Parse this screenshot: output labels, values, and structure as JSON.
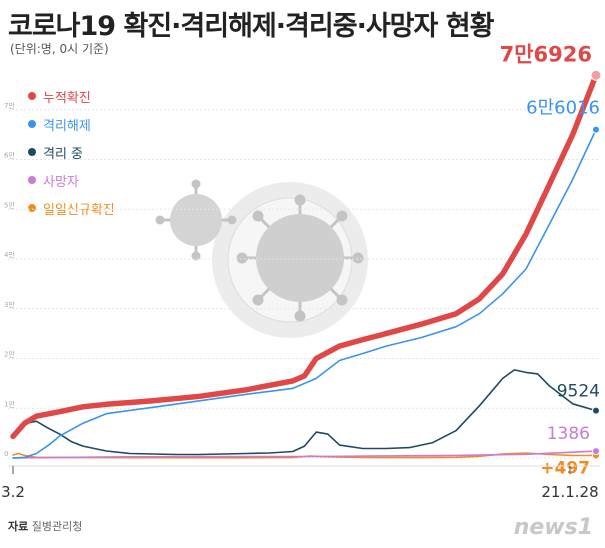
{
  "title": "코로나19 확진·격리해제·격리중·사망자 현황",
  "unit_note": "(단위:명, 0시 기준)",
  "source_label": "자료",
  "source": "질병관리청",
  "logo": "news1",
  "colors": {
    "confirmed": "#e04848",
    "released": "#3a94ee",
    "isolated": "#1e4a64",
    "deaths": "#c97bd6",
    "daily": "#f28c1e"
  },
  "chart_data": {
    "type": "line",
    "x_start_label": "3.2",
    "x_end_label": "21.1.28",
    "ylim": [
      0,
      80000
    ],
    "y_ticks": [
      "0",
      "1만",
      "2만",
      "3만",
      "4만",
      "5만",
      "6만",
      "7만"
    ],
    "x_index_range": [
      0,
      100
    ],
    "series": [
      {
        "key": "confirmed",
        "name": "누적확진",
        "points": [
          [
            0,
            4335
          ],
          [
            2,
            7000
          ],
          [
            4,
            8400
          ],
          [
            8,
            9300
          ],
          [
            12,
            10300
          ],
          [
            16,
            10800
          ],
          [
            24,
            11500
          ],
          [
            32,
            12400
          ],
          [
            40,
            13700
          ],
          [
            48,
            15500
          ],
          [
            50,
            16500
          ],
          [
            52,
            20000
          ],
          [
            56,
            22500
          ],
          [
            60,
            23800
          ],
          [
            64,
            25000
          ],
          [
            70,
            26900
          ],
          [
            76,
            29000
          ],
          [
            80,
            32000
          ],
          [
            84,
            37000
          ],
          [
            88,
            45000
          ],
          [
            92,
            55000
          ],
          [
            96,
            65000
          ],
          [
            100,
            76926
          ]
        ],
        "end_label": "7만6926"
      },
      {
        "key": "released",
        "name": "격리해제",
        "points": [
          [
            0,
            30
          ],
          [
            2,
            120
          ],
          [
            4,
            900
          ],
          [
            6,
            2500
          ],
          [
            8,
            4400
          ],
          [
            12,
            7000
          ],
          [
            16,
            8900
          ],
          [
            24,
            10200
          ],
          [
            32,
            11500
          ],
          [
            40,
            12800
          ],
          [
            48,
            14000
          ],
          [
            52,
            16000
          ],
          [
            56,
            19600
          ],
          [
            60,
            21000
          ],
          [
            64,
            22500
          ],
          [
            70,
            24200
          ],
          [
            76,
            26400
          ],
          [
            80,
            29000
          ],
          [
            84,
            33000
          ],
          [
            88,
            38000
          ],
          [
            92,
            47000
          ],
          [
            96,
            56000
          ],
          [
            100,
            66016
          ]
        ],
        "end_label": "6만6016"
      },
      {
        "key": "isolated",
        "name": "격리 중",
        "points": [
          [
            0,
            4300
          ],
          [
            2,
            6900
          ],
          [
            4,
            7400
          ],
          [
            6,
            6000
          ],
          [
            8,
            4800
          ],
          [
            10,
            3300
          ],
          [
            12,
            2400
          ],
          [
            16,
            1400
          ],
          [
            20,
            900
          ],
          [
            24,
            800
          ],
          [
            28,
            700
          ],
          [
            32,
            700
          ],
          [
            36,
            800
          ],
          [
            40,
            900
          ],
          [
            44,
            1000
          ],
          [
            48,
            1300
          ],
          [
            50,
            2400
          ],
          [
            52,
            5200
          ],
          [
            54,
            4800
          ],
          [
            56,
            2600
          ],
          [
            60,
            1900
          ],
          [
            64,
            1900
          ],
          [
            68,
            2100
          ],
          [
            72,
            3100
          ],
          [
            76,
            5500
          ],
          [
            80,
            10500
          ],
          [
            84,
            16000
          ],
          [
            86,
            17700
          ],
          [
            88,
            17200
          ],
          [
            90,
            16900
          ],
          [
            92,
            14500
          ],
          [
            96,
            10900
          ],
          [
            100,
            9524
          ]
        ],
        "end_label": "9524"
      },
      {
        "key": "deaths",
        "name": "사망자",
        "points": [
          [
            0,
            28
          ],
          [
            20,
            250
          ],
          [
            40,
            290
          ],
          [
            52,
            310
          ],
          [
            64,
            420
          ],
          [
            76,
            520
          ],
          [
            88,
            750
          ],
          [
            100,
            1386
          ]
        ],
        "end_label": "1386"
      },
      {
        "key": "daily",
        "name": "일일신규확진",
        "points": [
          [
            0,
            600
          ],
          [
            1,
            900
          ],
          [
            2,
            500
          ],
          [
            4,
            150
          ],
          [
            10,
            100
          ],
          [
            20,
            60
          ],
          [
            40,
            50
          ],
          [
            48,
            100
          ],
          [
            51,
            400
          ],
          [
            54,
            250
          ],
          [
            60,
            100
          ],
          [
            70,
            80
          ],
          [
            76,
            150
          ],
          [
            80,
            350
          ],
          [
            84,
            800
          ],
          [
            88,
            1000
          ],
          [
            92,
            700
          ],
          [
            96,
            500
          ],
          [
            100,
            497
          ]
        ],
        "end_label": "+497"
      }
    ]
  }
}
